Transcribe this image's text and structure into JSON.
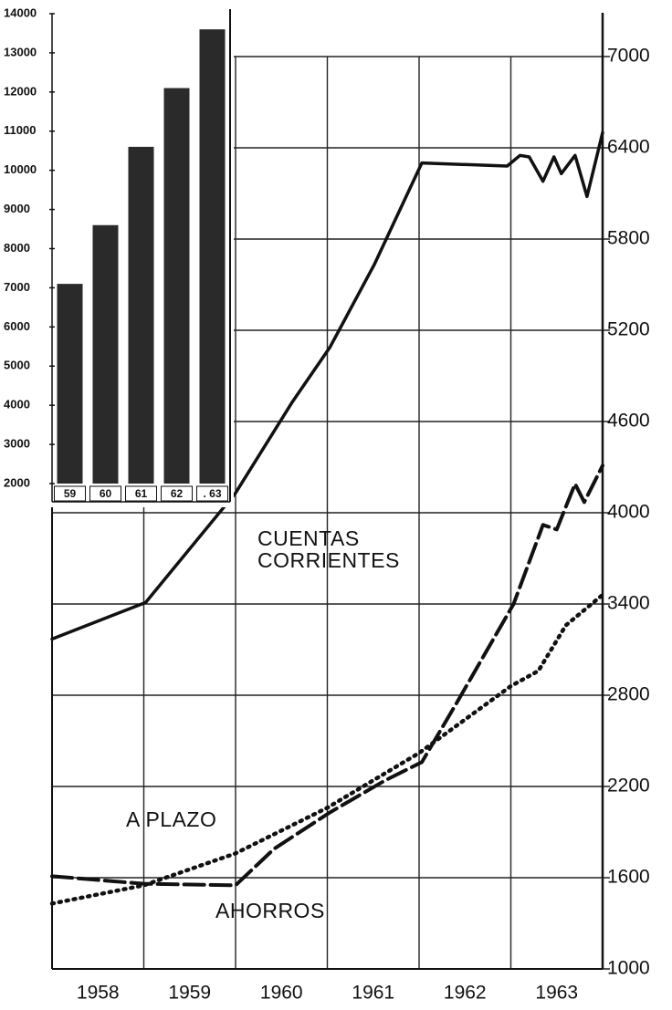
{
  "chart_data": [
    {
      "type": "line",
      "xlim": [
        1958,
        1964
      ],
      "xticks": [
        1958,
        1959,
        1960,
        1961,
        1962,
        1963
      ],
      "ylim": [
        1000,
        7000
      ],
      "yticks": [
        1000,
        1600,
        2200,
        2800,
        3400,
        4000,
        4600,
        5200,
        5800,
        6400,
        7000
      ],
      "grid": true,
      "color": "#111",
      "series": [
        {
          "name": "CUENTAS CORRIENTES",
          "dash": "solid",
          "x": [
            1958,
            1959.02,
            1960,
            1960.62,
            1961.03,
            1961.51,
            1962.03,
            1962.96,
            1963.1,
            1963.2,
            1963.35,
            1963.47,
            1963.55,
            1963.7,
            1963.83,
            1964
          ],
          "values": [
            3170,
            3410,
            4130,
            4730,
            5090,
            5630,
            6300,
            6280,
            6350,
            6340,
            6180,
            6340,
            6230,
            6350,
            6080,
            6500
          ]
        },
        {
          "name": "A PLAZO",
          "dash": "dashed",
          "x": [
            1958,
            1959,
            1960,
            1960.42,
            1961.03,
            1961.63,
            1962.03,
            1962.41,
            1963.03,
            1963.35,
            1963.5,
            1963.7,
            1963.8,
            1964
          ],
          "values": [
            1610,
            1560,
            1550,
            1790,
            2030,
            2240,
            2360,
            2750,
            3400,
            3920,
            3890,
            4190,
            4070,
            4310
          ]
        },
        {
          "name": "AHORROS",
          "dash": "dotted",
          "x": [
            1958,
            1959,
            1960,
            1961,
            1962,
            1963,
            1963.3,
            1963.6,
            1964
          ],
          "values": [
            1430,
            1550,
            1760,
            2060,
            2420,
            2860,
            2960,
            3260,
            3460
          ]
        }
      ]
    },
    {
      "type": "bar",
      "categories": [
        "59",
        "60",
        "61",
        "62",
        ". 63"
      ],
      "values": [
        7100,
        8600,
        10600,
        12100,
        13600
      ],
      "ylim": [
        2000,
        14000
      ],
      "yticks": [
        2000,
        3000,
        4000,
        5000,
        6000,
        7000,
        8000,
        9000,
        10000,
        11000,
        12000,
        13000,
        14000
      ],
      "color": "#2a2a2a"
    }
  ]
}
